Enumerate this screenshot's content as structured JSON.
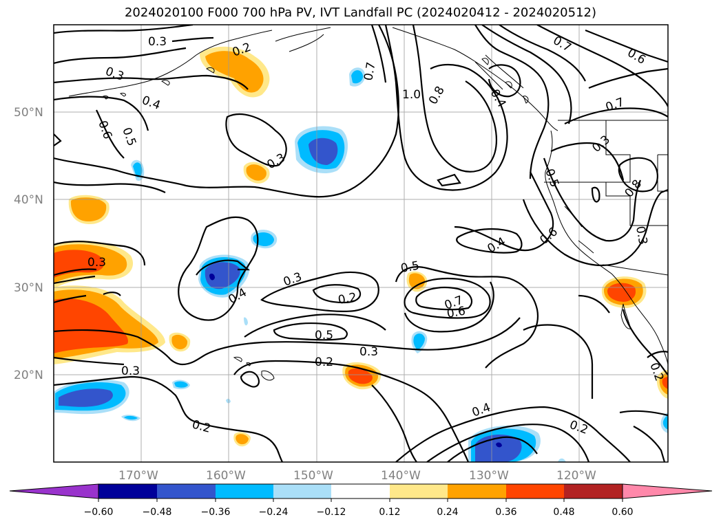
{
  "title": "2024020100 F000 700 hPa PV, IVT Landfall PC (2024020412 - 2024020512)",
  "latitude_labels": [
    "50°N",
    "40°N",
    "30°N",
    "20°N"
  ],
  "longitude_labels": [
    "170°W",
    "160°W",
    "150°W",
    "140°W",
    "130°W",
    "120°W"
  ],
  "contour_labels": [
    {
      "id": "c1",
      "text": "0.3"
    },
    {
      "id": "c2",
      "text": "0.2"
    },
    {
      "id": "c3",
      "text": "0.3"
    },
    {
      "id": "c4",
      "text": "0.4"
    },
    {
      "id": "c5",
      "text": "0.6"
    },
    {
      "id": "c6",
      "text": "0.5"
    },
    {
      "id": "c7",
      "text": "0.3"
    },
    {
      "id": "c8",
      "text": "0.7"
    },
    {
      "id": "c9",
      "text": "1.0"
    },
    {
      "id": "c10",
      "text": "0.8"
    },
    {
      "id": "c11",
      "text": "0.7"
    },
    {
      "id": "c12",
      "text": "0.6"
    },
    {
      "id": "c13",
      "text": "0.7"
    },
    {
      "id": "c14",
      "text": "0.3"
    },
    {
      "id": "c15",
      "text": "0.5"
    },
    {
      "id": "c16",
      "text": "0.8"
    },
    {
      "id": "c17",
      "text": "0.3"
    },
    {
      "id": "c18",
      "text": "0.6"
    },
    {
      "id": "c19",
      "text": "0.4"
    },
    {
      "id": "c20",
      "text": "0.3"
    },
    {
      "id": "c21",
      "text": "0.3"
    },
    {
      "id": "c22",
      "text": "0.4"
    },
    {
      "id": "c23",
      "text": "0.2"
    },
    {
      "id": "c24",
      "text": "0.5"
    },
    {
      "id": "c25",
      "text": "0.7"
    },
    {
      "id": "c26",
      "text": "0.6"
    },
    {
      "id": "c27",
      "text": "0.5"
    },
    {
      "id": "c28",
      "text": "0.3"
    },
    {
      "id": "c29",
      "text": "0.2"
    },
    {
      "id": "c30",
      "text": "0.3"
    },
    {
      "id": "c31",
      "text": "0.2"
    },
    {
      "id": "c32",
      "text": "0.4"
    },
    {
      "id": "c33",
      "text": "0.2"
    },
    {
      "id": "c34",
      "text": "0.2"
    },
    {
      "id": "c35",
      "text": "0.4"
    }
  ],
  "colorbar": {
    "ticks": [
      "−0.60",
      "−0.48",
      "−0.36",
      "−0.24",
      "−0.12",
      "0.12",
      "0.24",
      "0.36",
      "0.48",
      "0.60"
    ],
    "colors": [
      "#9933cc",
      "#000099",
      "#3355cc",
      "#00bbff",
      "#aadff8",
      "#ffffff",
      "#ffe88a",
      "#ffa200",
      "#ff4500",
      "#b22222",
      "#ff88aa"
    ]
  },
  "fill_colors": {
    "neg_light": "#aadff8",
    "neg_mid": "#00bbff",
    "neg_dark": "#3355cc",
    "neg_darkest": "#000099",
    "pos_light": "#ffe88a",
    "pos_mid": "#ffa200",
    "pos_dark": "#ff4500"
  }
}
